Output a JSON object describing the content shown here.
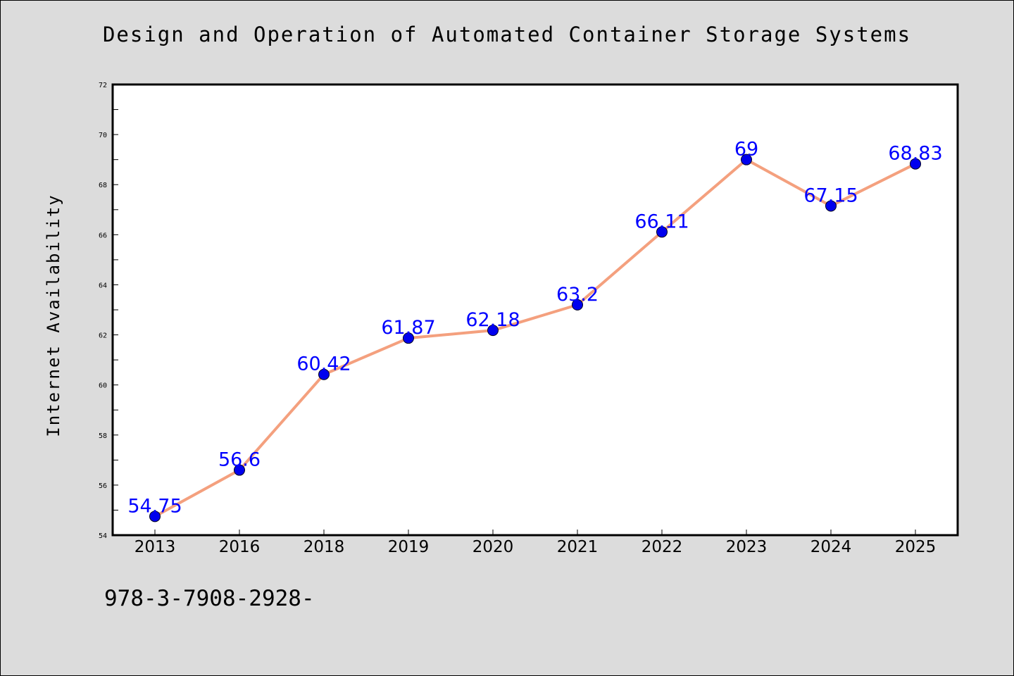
{
  "chart_data": {
    "type": "line",
    "title": "Design and Operation of Automated Container Storage Systems",
    "xlabel": "",
    "ylabel": "Internet Availability",
    "categories": [
      "2013",
      "2016",
      "2018",
      "2019",
      "2020",
      "2021",
      "2022",
      "2023",
      "2024",
      "2025"
    ],
    "values": [
      54.75,
      56.6,
      60.42,
      61.87,
      62.18,
      63.2,
      66.11,
      69,
      67.15,
      68.83
    ],
    "value_labels": [
      "54.75",
      "56.6",
      "60.42",
      "61.87",
      "62.18",
      "63.2",
      "66.11",
      "69",
      "67.15",
      "68.83"
    ],
    "ylim": [
      54,
      72
    ],
    "yticks": [
      "54",
      "56",
      "58",
      "60",
      "62",
      "64",
      "66",
      "68",
      "70",
      "72"
    ],
    "grid": false,
    "legend": "none",
    "colors": {
      "line": "#f4a07e",
      "marker": "#0000ee",
      "label": "#0000ff",
      "background": "#dcdcdc",
      "plot_area": "#ffffff"
    }
  },
  "footnote": "978-3-7908-2928-"
}
